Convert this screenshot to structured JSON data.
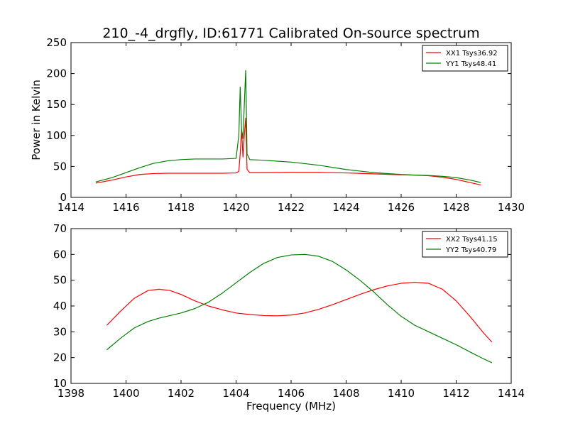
{
  "title": "210_-4_drgfly, ID:61771 Calibrated On-source spectrum",
  "chart_data": [
    {
      "type": "line",
      "ylabel": "Power in Kelvin",
      "xlabel": "",
      "xlim": [
        1414,
        1430
      ],
      "ylim": [
        0,
        250
      ],
      "xticks": [
        "1414",
        "1416",
        "1418",
        "1420",
        "1422",
        "1424",
        "1426",
        "1428",
        "1430"
      ],
      "yticks": [
        "0",
        "50",
        "100",
        "150",
        "200",
        "250"
      ],
      "legend_position": "top-right",
      "grid": false,
      "series": [
        {
          "name": "XX1 Tsys36.92",
          "color": "#ff0000",
          "x": [
            1414.9,
            1415.5,
            1416.0,
            1416.5,
            1417.0,
            1417.5,
            1418.0,
            1418.5,
            1419.0,
            1419.5,
            1420.0,
            1420.1,
            1420.15,
            1420.2,
            1420.25,
            1420.3,
            1420.35,
            1420.4,
            1420.5,
            1421.0,
            1422.0,
            1423.0,
            1424.0,
            1425.0,
            1426.0,
            1426.5,
            1427.0,
            1427.5,
            1428.0,
            1428.5,
            1428.9
          ],
          "values": [
            23,
            28,
            33,
            37,
            38.5,
            39,
            39,
            39,
            39,
            39,
            39.5,
            42,
            70,
            110,
            65,
            100,
            128,
            45,
            40,
            40,
            40.5,
            40.5,
            39.5,
            38,
            36.5,
            36,
            35,
            32.5,
            29,
            24,
            20
          ]
        },
        {
          "name": "YY1 Tsys48.41",
          "color": "#008000",
          "x": [
            1414.9,
            1415.5,
            1416.0,
            1416.5,
            1417.0,
            1417.5,
            1418.0,
            1418.5,
            1419.0,
            1419.5,
            1420.0,
            1420.1,
            1420.15,
            1420.2,
            1420.25,
            1420.3,
            1420.35,
            1420.4,
            1420.5,
            1421.0,
            1422.0,
            1423.0,
            1424.0,
            1425.0,
            1426.0,
            1426.5,
            1427.0,
            1427.5,
            1428.0,
            1428.5,
            1428.9
          ],
          "values": [
            25,
            32,
            40,
            48,
            55,
            59,
            61,
            62,
            62,
            62,
            63,
            100,
            178,
            110,
            95,
            150,
            205,
            70,
            61,
            60,
            57,
            52,
            45,
            40,
            37,
            36,
            35.5,
            34,
            32,
            28,
            24
          ]
        }
      ]
    },
    {
      "type": "line",
      "ylabel": "",
      "xlabel": "Frequency (MHz)",
      "xlim": [
        1398,
        1414
      ],
      "ylim": [
        10,
        70
      ],
      "xticks": [
        "1398",
        "1400",
        "1402",
        "1404",
        "1406",
        "1408",
        "1410",
        "1412",
        "1414"
      ],
      "yticks": [
        "10",
        "20",
        "30",
        "40",
        "50",
        "60",
        "70"
      ],
      "legend_position": "top-right",
      "grid": false,
      "series": [
        {
          "name": "XX2 Tsys41.15",
          "color": "#ff0000",
          "x": [
            1399.3,
            1399.8,
            1400.3,
            1400.8,
            1401.2,
            1401.6,
            1402.0,
            1402.5,
            1403.0,
            1403.5,
            1404.0,
            1404.5,
            1405.0,
            1405.5,
            1406.0,
            1406.5,
            1407.0,
            1407.5,
            1408.0,
            1408.5,
            1409.0,
            1409.5,
            1410.0,
            1410.5,
            1411.0,
            1411.5,
            1412.0,
            1412.5,
            1413.0,
            1413.3
          ],
          "values": [
            32.5,
            38,
            43,
            46,
            46.5,
            46,
            44.5,
            42,
            40,
            38.5,
            37.3,
            36.7,
            36.3,
            36.2,
            36.5,
            37.3,
            38.7,
            40.5,
            42.5,
            44.5,
            46.3,
            47.8,
            48.8,
            49.2,
            48.8,
            46.5,
            42,
            36,
            29.5,
            26
          ]
        },
        {
          "name": "YY2 Tsys40.79",
          "color": "#008000",
          "x": [
            1399.3,
            1399.8,
            1400.3,
            1400.8,
            1401.2,
            1401.6,
            1402.0,
            1402.5,
            1403.0,
            1403.5,
            1404.0,
            1404.5,
            1405.0,
            1405.5,
            1406.0,
            1406.5,
            1407.0,
            1407.5,
            1408.0,
            1408.5,
            1409.0,
            1409.5,
            1410.0,
            1410.5,
            1411.0,
            1411.5,
            1412.0,
            1412.5,
            1413.0,
            1413.3
          ],
          "values": [
            23,
            27.5,
            31.5,
            34,
            35.3,
            36.3,
            37.3,
            39,
            41.5,
            45,
            49,
            53,
            56.5,
            58.8,
            59.8,
            60,
            59.3,
            57.3,
            54,
            50,
            45.5,
            40.5,
            36,
            32.5,
            30,
            27.5,
            25,
            22.2,
            19.5,
            18
          ]
        }
      ]
    }
  ]
}
